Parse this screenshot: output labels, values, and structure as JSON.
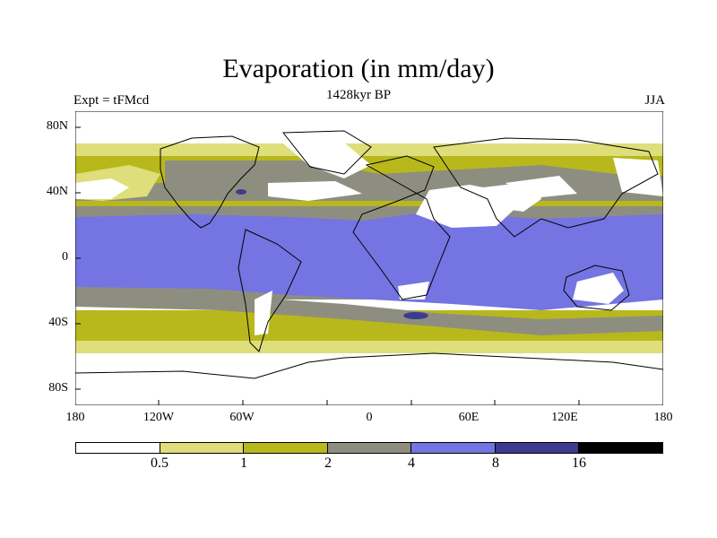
{
  "title": "Evaporation (in mm/day)",
  "experiment_label": "Expt = tFMcd",
  "time_label": "1428kyr BP",
  "season_label": "JJA",
  "lat_labels": [
    "80N",
    "40N",
    "0",
    "40S",
    "80S"
  ],
  "lon_labels": [
    "180",
    "120W",
    "60W",
    "0",
    "60E",
    "120E",
    "180"
  ],
  "colorbar": {
    "colors": [
      "#ffffff",
      "#dede7a",
      "#b8b81c",
      "#8e8e80",
      "#7474e2",
      "#3c3c8e",
      "#000000"
    ],
    "labels": [
      "0.5",
      "1",
      "2",
      "4",
      "8",
      "16"
    ]
  },
  "colors": {
    "white": "#ffffff",
    "lightyellow": "#dede7a",
    "olive": "#b8b81c",
    "gray": "#8e8e80",
    "blue": "#7474e2",
    "darkblue": "#3c3c8e"
  }
}
